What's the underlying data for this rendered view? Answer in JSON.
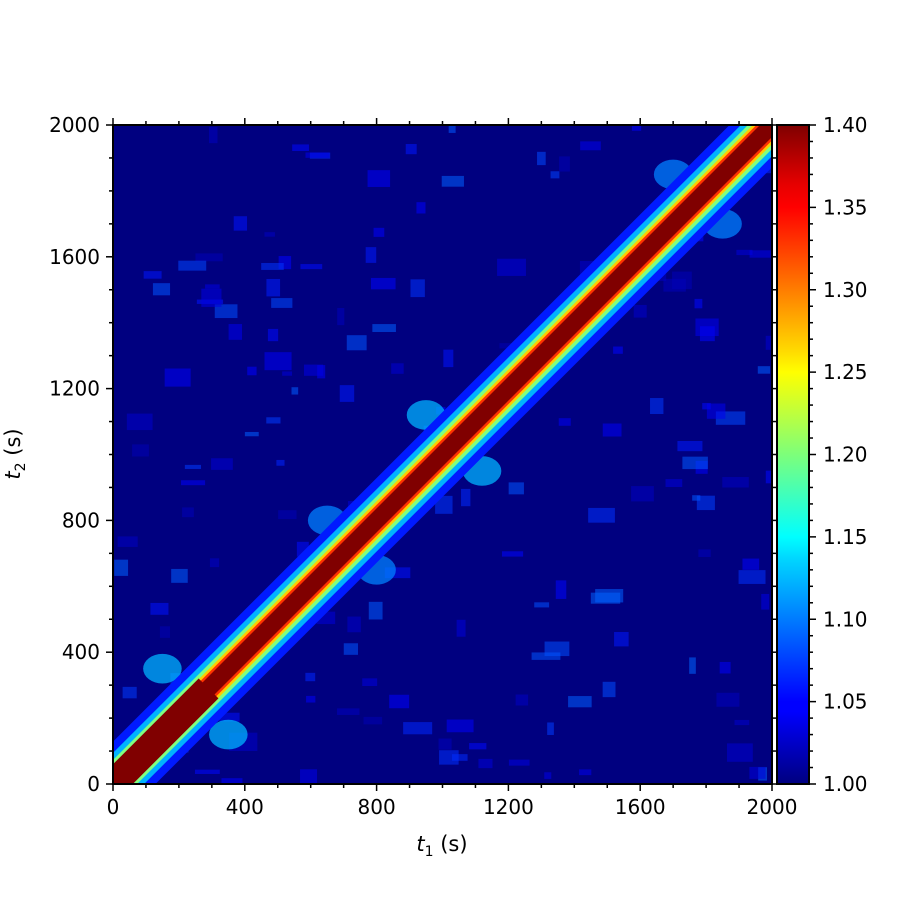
{
  "chart_data": {
    "type": "heatmap",
    "title": "",
    "xlabel": {
      "var": "t",
      "sub": "1",
      "unit": " (s)"
    },
    "ylabel": {
      "var": "t",
      "sub": "2",
      "unit": " (s)"
    },
    "xlim": [
      0,
      2000
    ],
    "ylim": [
      0,
      2000
    ],
    "x_ticks": [
      0,
      400,
      800,
      1200,
      1600,
      2000
    ],
    "y_ticks": [
      0,
      400,
      800,
      1200,
      1600,
      2000
    ],
    "x_tick_labels": [
      "0",
      "400",
      "800",
      "1200",
      "1600",
      "2000"
    ],
    "y_tick_labels": [
      "0",
      "400",
      "800",
      "1200",
      "1600",
      "2000"
    ],
    "colormap": "jet",
    "value_range": [
      1.0,
      1.4
    ],
    "colorbar_ticks": [
      1.0,
      1.05,
      1.1,
      1.15,
      1.2,
      1.25,
      1.3,
      1.35,
      1.4
    ],
    "colorbar_tick_labels": [
      "1.00",
      "1.05",
      "1.10",
      "1.15",
      "1.20",
      "1.25",
      "1.30",
      "1.35",
      "1.40"
    ],
    "description_values": {
      "diagonal_value": 1.4,
      "background_value": 1.0,
      "cluster_centers": [
        {
          "t1": 150,
          "t2": 350,
          "value": 1.12
        },
        {
          "t1": 350,
          "t2": 150,
          "value": 1.12
        },
        {
          "t1": 650,
          "t2": 800,
          "value": 1.1
        },
        {
          "t1": 800,
          "t2": 650,
          "value": 1.1
        },
        {
          "t1": 950,
          "t2": 1120,
          "value": 1.12
        },
        {
          "t1": 1120,
          "t2": 950,
          "value": 1.12
        },
        {
          "t1": 1700,
          "t2": 1850,
          "value": 1.1
        },
        {
          "t1": 1850,
          "t2": 1700,
          "value": 1.1
        }
      ]
    }
  }
}
